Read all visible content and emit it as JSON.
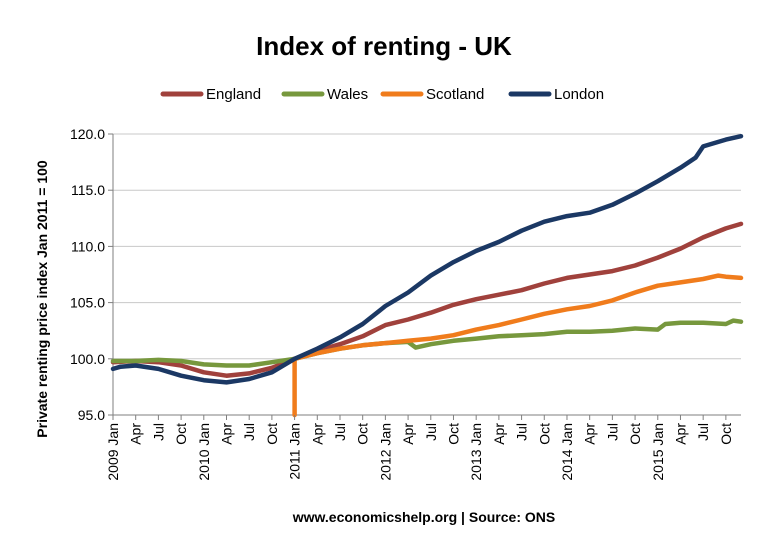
{
  "chart_data": {
    "type": "line",
    "title": "Index of renting - UK",
    "ylabel": "Private renting price index Jan 2011 = 100",
    "source_note": "www.economicshelp.org | Source: ONS",
    "ylim": [
      95,
      120
    ],
    "yticks": [
      95,
      100,
      105,
      110,
      115,
      120
    ],
    "ytick_labels": [
      "95.0",
      "100.0",
      "105.0",
      "110.0",
      "115.0",
      "120.0"
    ],
    "xticks": [
      {
        "month": 0,
        "label": "2009 Jan"
      },
      {
        "month": 3,
        "label": "Apr"
      },
      {
        "month": 6,
        "label": "Jul"
      },
      {
        "month": 9,
        "label": "Oct"
      },
      {
        "month": 12,
        "label": "2010 Jan"
      },
      {
        "month": 15,
        "label": "Apr"
      },
      {
        "month": 18,
        "label": "Jul"
      },
      {
        "month": 21,
        "label": "Oct"
      },
      {
        "month": 24,
        "label": "2011 Jan"
      },
      {
        "month": 27,
        "label": "Apr"
      },
      {
        "month": 30,
        "label": "Jul"
      },
      {
        "month": 33,
        "label": "Oct"
      },
      {
        "month": 36,
        "label": "2012 Jan"
      },
      {
        "month": 39,
        "label": "Apr"
      },
      {
        "month": 42,
        "label": "Jul"
      },
      {
        "month": 45,
        "label": "Oct"
      },
      {
        "month": 48,
        "label": "2013 Jan"
      },
      {
        "month": 51,
        "label": "Apr"
      },
      {
        "month": 54,
        "label": "Jul"
      },
      {
        "month": 57,
        "label": "Oct"
      },
      {
        "month": 60,
        "label": "2014 Jan"
      },
      {
        "month": 63,
        "label": "Apr"
      },
      {
        "month": 66,
        "label": "Jul"
      },
      {
        "month": 69,
        "label": "Oct"
      },
      {
        "month": 72,
        "label": "2015 Jan"
      },
      {
        "month": 75,
        "label": "Apr"
      },
      {
        "month": 78,
        "label": "Jul"
      },
      {
        "month": 81,
        "label": "Oct"
      }
    ],
    "xlim": [
      0,
      83
    ],
    "grid": "horizontal",
    "legend": "top",
    "series": [
      {
        "name": "England",
        "color": "#a0413c",
        "points": [
          [
            0,
            99.7
          ],
          [
            3,
            99.8
          ],
          [
            6,
            99.7
          ],
          [
            9,
            99.4
          ],
          [
            12,
            98.8
          ],
          [
            15,
            98.5
          ],
          [
            18,
            98.7
          ],
          [
            21,
            99.2
          ],
          [
            24,
            100.0
          ],
          [
            27,
            100.7
          ],
          [
            30,
            101.3
          ],
          [
            33,
            102.0
          ],
          [
            36,
            103.0
          ],
          [
            39,
            103.5
          ],
          [
            42,
            104.1
          ],
          [
            45,
            104.8
          ],
          [
            48,
            105.3
          ],
          [
            51,
            105.7
          ],
          [
            54,
            106.1
          ],
          [
            57,
            106.7
          ],
          [
            60,
            107.2
          ],
          [
            63,
            107.5
          ],
          [
            66,
            107.8
          ],
          [
            69,
            108.3
          ],
          [
            72,
            109.0
          ],
          [
            75,
            109.8
          ],
          [
            78,
            110.8
          ],
          [
            81,
            111.6
          ],
          [
            83,
            112.0
          ]
        ]
      },
      {
        "name": "Wales",
        "color": "#77983d",
        "points": [
          [
            0,
            99.8
          ],
          [
            3,
            99.8
          ],
          [
            6,
            99.9
          ],
          [
            9,
            99.8
          ],
          [
            12,
            99.5
          ],
          [
            15,
            99.4
          ],
          [
            18,
            99.4
          ],
          [
            21,
            99.7
          ],
          [
            24,
            100.0
          ],
          [
            27,
            100.5
          ],
          [
            30,
            100.9
          ],
          [
            33,
            101.2
          ],
          [
            36,
            101.4
          ],
          [
            39,
            101.5
          ],
          [
            40,
            101.0
          ],
          [
            42,
            101.3
          ],
          [
            45,
            101.6
          ],
          [
            48,
            101.8
          ],
          [
            51,
            102.0
          ],
          [
            54,
            102.1
          ],
          [
            57,
            102.2
          ],
          [
            60,
            102.4
          ],
          [
            63,
            102.4
          ],
          [
            66,
            102.5
          ],
          [
            69,
            102.7
          ],
          [
            72,
            102.6
          ],
          [
            73,
            103.1
          ],
          [
            75,
            103.2
          ],
          [
            78,
            103.2
          ],
          [
            81,
            103.1
          ],
          [
            82,
            103.4
          ],
          [
            83,
            103.3
          ]
        ]
      },
      {
        "name": "Scotland",
        "color": "#f07c1c",
        "points": [
          [
            24,
            95.0
          ],
          [
            24,
            100.0
          ],
          [
            27,
            100.5
          ],
          [
            30,
            100.9
          ],
          [
            33,
            101.2
          ],
          [
            36,
            101.4
          ],
          [
            39,
            101.6
          ],
          [
            42,
            101.8
          ],
          [
            45,
            102.1
          ],
          [
            48,
            102.6
          ],
          [
            51,
            103.0
          ],
          [
            54,
            103.5
          ],
          [
            57,
            104.0
          ],
          [
            60,
            104.4
          ],
          [
            63,
            104.7
          ],
          [
            66,
            105.2
          ],
          [
            69,
            105.9
          ],
          [
            72,
            106.5
          ],
          [
            75,
            106.8
          ],
          [
            78,
            107.1
          ],
          [
            80,
            107.4
          ],
          [
            81,
            107.3
          ],
          [
            83,
            107.2
          ]
        ]
      },
      {
        "name": "London",
        "color": "#1b3864",
        "points": [
          [
            0,
            99.1
          ],
          [
            1,
            99.3
          ],
          [
            3,
            99.4
          ],
          [
            6,
            99.1
          ],
          [
            9,
            98.5
          ],
          [
            12,
            98.1
          ],
          [
            15,
            97.9
          ],
          [
            18,
            98.2
          ],
          [
            21,
            98.8
          ],
          [
            24,
            100.0
          ],
          [
            27,
            100.9
          ],
          [
            30,
            101.9
          ],
          [
            33,
            103.1
          ],
          [
            36,
            104.7
          ],
          [
            39,
            105.9
          ],
          [
            42,
            107.4
          ],
          [
            45,
            108.6
          ],
          [
            48,
            109.6
          ],
          [
            51,
            110.4
          ],
          [
            54,
            111.4
          ],
          [
            57,
            112.2
          ],
          [
            60,
            112.7
          ],
          [
            63,
            113.0
          ],
          [
            66,
            113.7
          ],
          [
            69,
            114.7
          ],
          [
            72,
            115.8
          ],
          [
            75,
            117.0
          ],
          [
            77,
            117.9
          ],
          [
            78,
            118.9
          ],
          [
            81,
            119.5
          ],
          [
            83,
            119.8
          ]
        ]
      }
    ]
  }
}
